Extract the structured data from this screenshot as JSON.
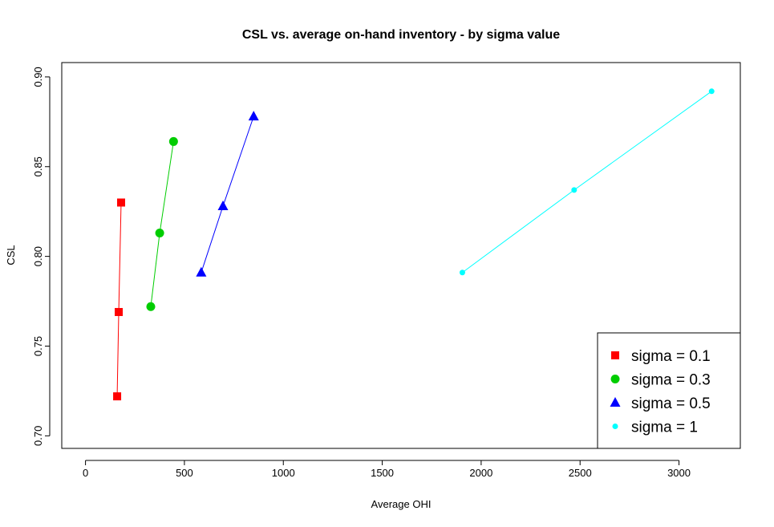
{
  "chart_data": {
    "type": "line",
    "title": "CSL vs. average on-hand inventory - by sigma value",
    "xlabel": "Average OHI",
    "ylabel": "CSL",
    "xlim": [
      -120,
      3310
    ],
    "ylim": [
      0.693,
      0.908
    ],
    "x_ticks": [
      0,
      500,
      1000,
      1500,
      2000,
      2500,
      3000
    ],
    "x_tick_labels": [
      "0",
      "500",
      "1000",
      "1500",
      "2000",
      "2500",
      "3000"
    ],
    "y_ticks": [
      0.7,
      0.75,
      0.8,
      0.85,
      0.9
    ],
    "y_tick_labels": [
      "0.70",
      "0.75",
      "0.80",
      "0.85",
      "0.90"
    ],
    "grid": false,
    "legend_position": "bottom-right",
    "series": [
      {
        "name": "sigma = 0.1",
        "color": "#ff0000",
        "marker": "square",
        "x": [
          160,
          168,
          180
        ],
        "y": [
          0.722,
          0.769,
          0.83
        ]
      },
      {
        "name": "sigma = 0.3",
        "color": "#00cd00",
        "marker": "circle",
        "x": [
          330,
          375,
          445
        ],
        "y": [
          0.772,
          0.813,
          0.864
        ]
      },
      {
        "name": "sigma = 0.5",
        "color": "#0000ff",
        "marker": "triangle",
        "x": [
          585,
          695,
          850
        ],
        "y": [
          0.791,
          0.828,
          0.878
        ]
      },
      {
        "name": "sigma = 1",
        "color": "#00ffff",
        "marker": "dot",
        "x": [
          1905,
          2470,
          3165
        ],
        "y": [
          0.791,
          0.837,
          0.892
        ]
      }
    ]
  }
}
